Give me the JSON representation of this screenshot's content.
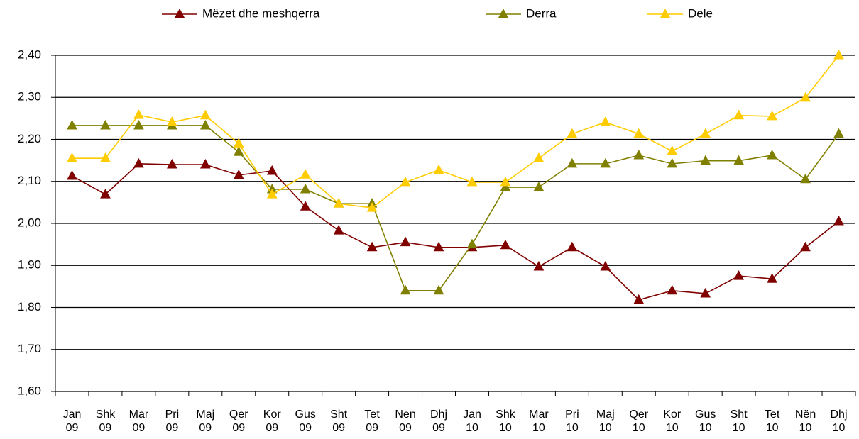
{
  "chart_data": {
    "type": "line",
    "categories": [
      "Jan 09",
      "Shk 09",
      "Mar 09",
      "Pri 09",
      "Maj 09",
      "Qer 09",
      "Kor 09",
      "Gus 09",
      "Sht 09",
      "Tet 09",
      "Nen 09",
      "Dhj 09",
      "Jan 10",
      "Shk 10",
      "Mar 10",
      "Pri 10",
      "Maj 10",
      "Qer 10",
      "Kor 10",
      "Gus 10",
      "Sht 10",
      "Tet 10",
      "Nën 10",
      "Dhj 10"
    ],
    "series": [
      {
        "name": "Mëzet dhe meshqerra",
        "color": "#800000",
        "values": [
          2.113,
          2.069,
          2.142,
          2.14,
          2.14,
          2.115,
          2.125,
          2.04,
          1.983,
          1.943,
          1.955,
          1.943,
          1.943,
          1.948,
          1.897,
          1.943,
          1.897,
          1.818,
          1.84,
          1.833,
          1.875,
          1.868,
          1.943,
          2.005
        ]
      },
      {
        "name": "Derra",
        "color": "#808000",
        "values": [
          2.233,
          2.233,
          2.233,
          2.233,
          2.233,
          2.17,
          2.081,
          2.081,
          2.047,
          2.047,
          1.84,
          1.84,
          1.95,
          2.086,
          2.086,
          2.142,
          2.142,
          2.162,
          2.142,
          2.149,
          2.149,
          2.162,
          2.105,
          2.213
        ]
      },
      {
        "name": "Dele",
        "color": "#ffcc00",
        "values": [
          2.155,
          2.155,
          2.258,
          2.241,
          2.257,
          2.19,
          2.069,
          2.116,
          2.047,
          2.037,
          2.098,
          2.127,
          2.098,
          2.098,
          2.155,
          2.213,
          2.241,
          2.213,
          2.172,
          2.213,
          2.257,
          2.255,
          2.299,
          2.4
        ]
      }
    ],
    "ylim": [
      1.6,
      2.4
    ],
    "yticks": [
      {
        "value": 1.6,
        "label": "1,60"
      },
      {
        "value": 1.7,
        "label": "1,70"
      },
      {
        "value": 1.8,
        "label": "1,80"
      },
      {
        "value": 1.9,
        "label": "1,90"
      },
      {
        "value": 2.0,
        "label": "2,00"
      },
      {
        "value": 2.1,
        "label": "2,10"
      },
      {
        "value": 2.2,
        "label": "2,20"
      },
      {
        "value": 2.3,
        "label": "2,30"
      },
      {
        "value": 2.4,
        "label": "2,40"
      }
    ],
    "grid": true,
    "legend": "top"
  }
}
